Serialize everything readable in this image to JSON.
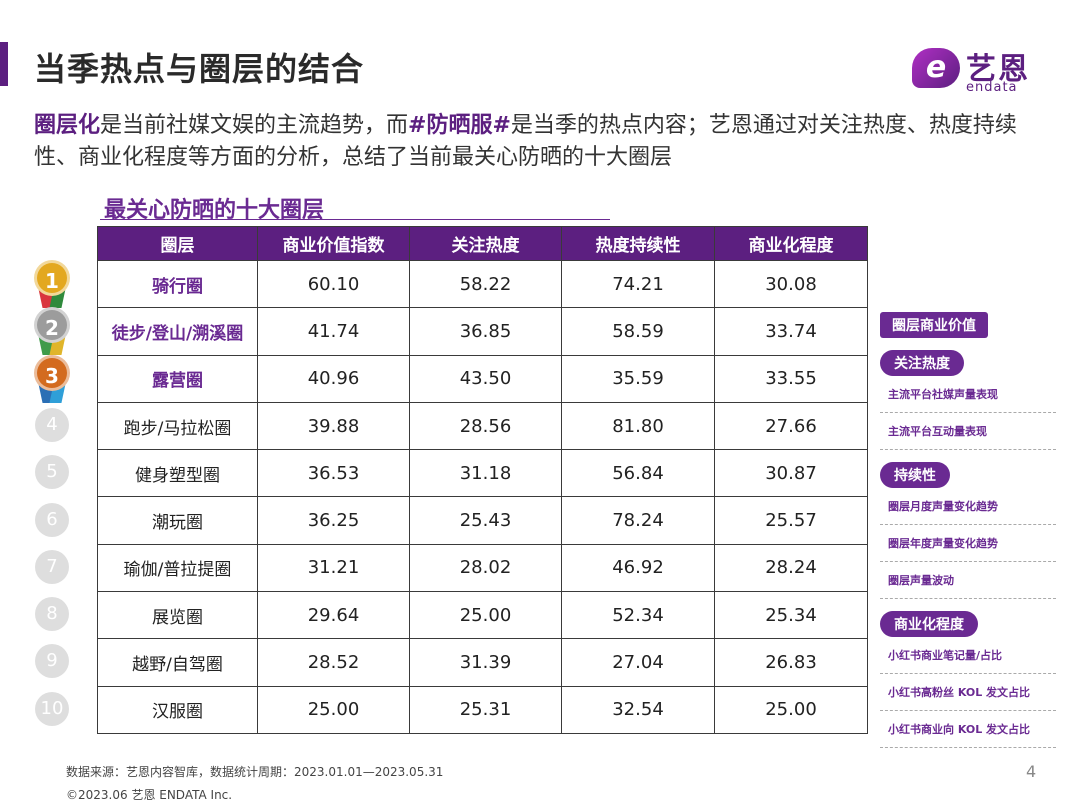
{
  "header": {
    "title": "当季热点与圈层的结合",
    "logo_cn": "艺恩",
    "logo_en": "endata",
    "logo_mark": "e"
  },
  "intro": {
    "part1": "圈层化",
    "part2": "是当前社媒文娱的主流趋势，而",
    "part3": "#防晒服#",
    "part4": "是当季的热点内容；艺恩通过对关注热度、热度持续性、商业化程度等方面的分析，总结了当前最关心防晒的十大圈层"
  },
  "table": {
    "title": "最关心防晒的十大圈层",
    "headers": [
      "圈层",
      "商业价值指数",
      "关注热度",
      "热度持续性",
      "商业化程度"
    ],
    "rows": [
      {
        "rank": "1",
        "name": "骑行圈",
        "c1": "60.10",
        "c2": "58.22",
        "c3": "74.21",
        "c4": "30.08"
      },
      {
        "rank": "2",
        "name": "徒步/登山/溯溪圈",
        "c1": "41.74",
        "c2": "36.85",
        "c3": "58.59",
        "c4": "33.74"
      },
      {
        "rank": "3",
        "name": "露营圈",
        "c1": "40.96",
        "c2": "43.50",
        "c3": "35.59",
        "c4": "33.55"
      },
      {
        "rank": "4",
        "name": "跑步/马拉松圈",
        "c1": "39.88",
        "c2": "28.56",
        "c3": "81.80",
        "c4": "27.66"
      },
      {
        "rank": "5",
        "name": "健身塑型圈",
        "c1": "36.53",
        "c2": "31.18",
        "c3": "56.84",
        "c4": "30.87"
      },
      {
        "rank": "6",
        "name": "潮玩圈",
        "c1": "36.25",
        "c2": "25.43",
        "c3": "78.24",
        "c4": "25.57"
      },
      {
        "rank": "7",
        "name": "瑜伽/普拉提圈",
        "c1": "31.21",
        "c2": "28.02",
        "c3": "46.92",
        "c4": "28.24"
      },
      {
        "rank": "8",
        "name": "展览圈",
        "c1": "29.64",
        "c2": "25.00",
        "c3": "52.34",
        "c4": "25.34"
      },
      {
        "rank": "9",
        "name": "越野/自驾圈",
        "c1": "28.52",
        "c2": "31.39",
        "c3": "27.04",
        "c4": "26.83"
      },
      {
        "rank": "10",
        "name": "汉服圈",
        "c1": "25.00",
        "c2": "25.31",
        "c3": "32.54",
        "c4": "25.00"
      }
    ]
  },
  "legend": {
    "value_label": "圈层商业价值",
    "heat_label": "关注热度",
    "heat_items": [
      "主流平台社媒声量表现",
      "主流平台互动量表现"
    ],
    "sustain_label": "持续性",
    "sustain_items": [
      "圈层月度声量变化趋势",
      "圈层年度声量变化趋势",
      "圈层声量波动"
    ],
    "commercial_label": "商业化程度",
    "commercial_items": [
      "小红书商业笔记量/占比",
      "小红书高粉丝 KOL 发文占比",
      "小红书商业向 KOL 发文占比"
    ]
  },
  "footer": {
    "source": "数据来源：艺恩内容智库，数据统计周期：2023.01.01—2023.05.31",
    "copyright": "©2023.06 艺恩 ENDATA Inc.",
    "page_number": "4"
  },
  "colors": {
    "brand_purple": "#5c1f80",
    "accent_purple": "#6a2a92",
    "gold": "#e3a820",
    "silver": "#9c9c9c",
    "bronze": "#d36b1f"
  }
}
